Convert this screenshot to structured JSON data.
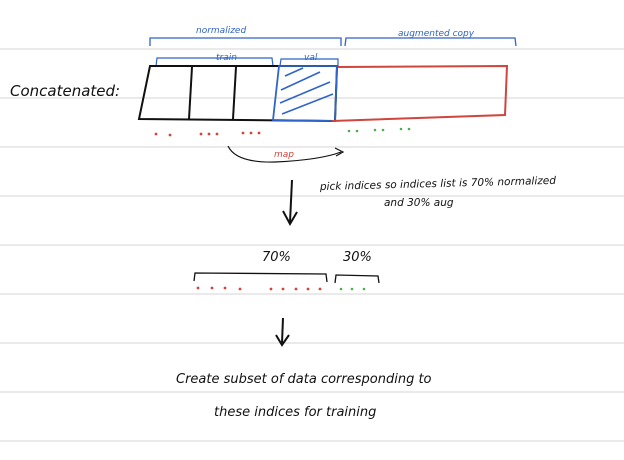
{
  "colors": {
    "ink": "#111111",
    "blue": "#2f64c8",
    "red": "#d0463f",
    "green": "#4caf50",
    "rule": "#d4d4d4"
  },
  "labels": {
    "concatenated": "Concatenated:",
    "normalized": "normalized",
    "augmented_copy": "augmented copy",
    "train": "train",
    "val": "val",
    "map": "map",
    "pick_line1": "pick indices so indices list is 70% normalized",
    "pick_line2": "and 30% aug",
    "pct_70": "70%",
    "pct_30": "30%",
    "create_line1": "Create subset of data corresponding to",
    "create_line2": "these indices for training"
  }
}
